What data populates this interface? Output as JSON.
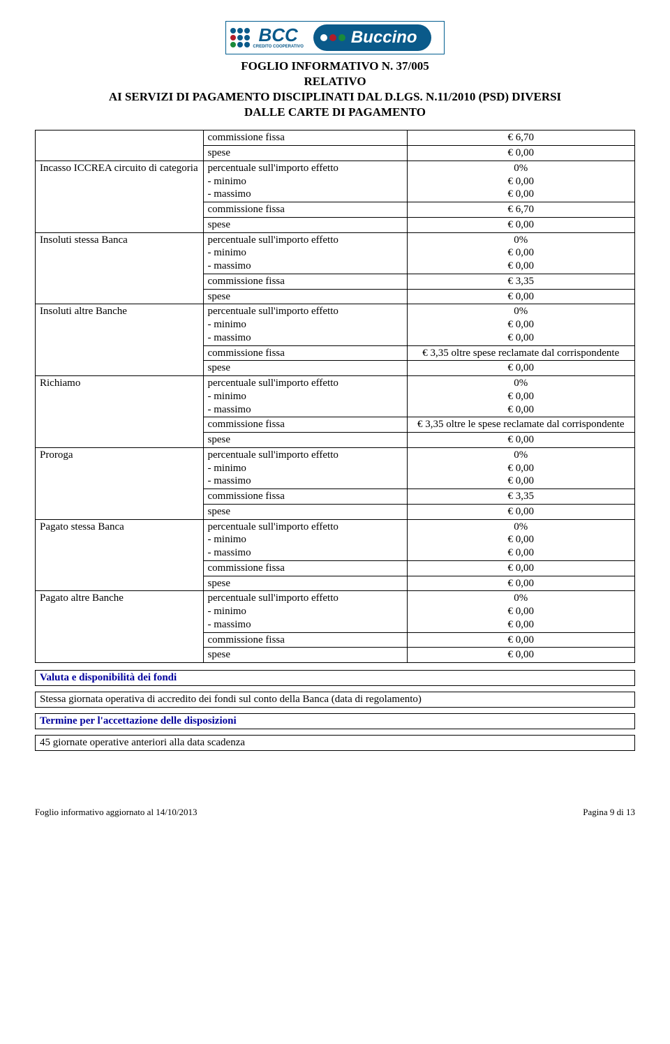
{
  "header": {
    "bcc": "BCC",
    "bcc_sub": "CREDITO COOPERATIVO",
    "buccino": "Buccino"
  },
  "title": {
    "line1": "FOGLIO INFORMATIVO N. 37/005",
    "line2": "RELATIVO",
    "line3": "AI SERVIZI DI PAGAMENTO  DISCIPLINATI DAL D.LGS. N.11/2010 (PSD) DIVERSI",
    "line4": "DALLE CARTE DI  PAGAMENTO"
  },
  "rows": [
    {
      "left": "",
      "mid": "commissione fissa",
      "right": "€  6,70"
    },
    {
      "left": "",
      "mid": "spese",
      "right": "€  0,00"
    },
    {
      "left": "Incasso ICCREA circuito di categoria",
      "left_rowspan": 4,
      "mid": "percentuale sull'importo effetto\n- minimo\n- massimo",
      "right": "0%\n€  0,00\n€  0,00"
    },
    {
      "mid": "commissione fissa",
      "right": "€  6,70"
    },
    {
      "mid": "spese",
      "right": "€  0,00"
    },
    {
      "left": "Insoluti stessa Banca",
      "left_rowspan": 4,
      "mid": "percentuale sull'importo effetto\n- minimo\n- massimo",
      "right": "0%\n€  0,00\n€  0,00"
    },
    {
      "mid": "commissione fissa",
      "right": "€  3,35"
    },
    {
      "mid": "spese",
      "right": "€  0,00"
    },
    {
      "left": "Insoluti altre Banche",
      "left_rowspan": 4,
      "mid": "percentuale sull'importo effetto\n- minimo\n- massimo",
      "right": "0%\n€  0,00\n€  0,00"
    },
    {
      "mid": "commissione fissa",
      "right": "€   3,35 oltre spese reclamate dal corrispondente"
    },
    {
      "mid": "spese",
      "right": "€  0,00"
    },
    {
      "left": "Richiamo",
      "left_rowspan": 4,
      "mid": "percentuale sull'importo effetto\n- minimo\n- massimo",
      "right": "0%\n€  0,00\n€  0,00"
    },
    {
      "mid": "commissione fissa",
      "right": "€  3,35 oltre le spese reclamate dal corrispondente"
    },
    {
      "mid": "spese",
      "right": "€  0,00"
    },
    {
      "left": "Proroga",
      "left_rowspan": 4,
      "mid": "percentuale sull'importo effetto\n- minimo\n- massimo",
      "right": "0%\n€  0,00\n€  0,00"
    },
    {
      "mid": "commissione fissa",
      "right": "€  3,35"
    },
    {
      "mid": "spese",
      "right": "€  0,00"
    },
    {
      "left": "Pagato stessa Banca",
      "left_rowspan": 4,
      "mid": "percentuale sull'importo effetto\n- minimo\n- massimo",
      "right": "0%\n€  0,00\n€  0,00"
    },
    {
      "mid": "commissione fissa",
      "right": "€  0,00"
    },
    {
      "mid": "spese",
      "right": "€  0,00"
    },
    {
      "left": "Pagato altre Banche",
      "left_rowspan": 4,
      "mid": "percentuale sull'importo effetto\n- minimo\n- massimo",
      "right": "0%\n€  0,00\n€  0,00"
    },
    {
      "mid": "commissione fissa",
      "right": "€  0,00"
    },
    {
      "mid": "spese",
      "right": "€  0,00"
    }
  ],
  "valuta_heading": "Valuta e disponibilità dei fondi",
  "valuta_text": "Stessa giornata operativa di accredito dei fondi sul conto della Banca (data di regolamento)",
  "termine_heading": "Termine per l'accettazione delle disposizioni",
  "termine_text": "45 giornate operative anteriori alla data scadenza",
  "footer": {
    "left": "Foglio informativo aggiornato al  14/10/2013",
    "right": "Pagina 9 di 13"
  },
  "colors": {
    "blue": "#0a5a8a",
    "heading_blue": "#00009c"
  }
}
